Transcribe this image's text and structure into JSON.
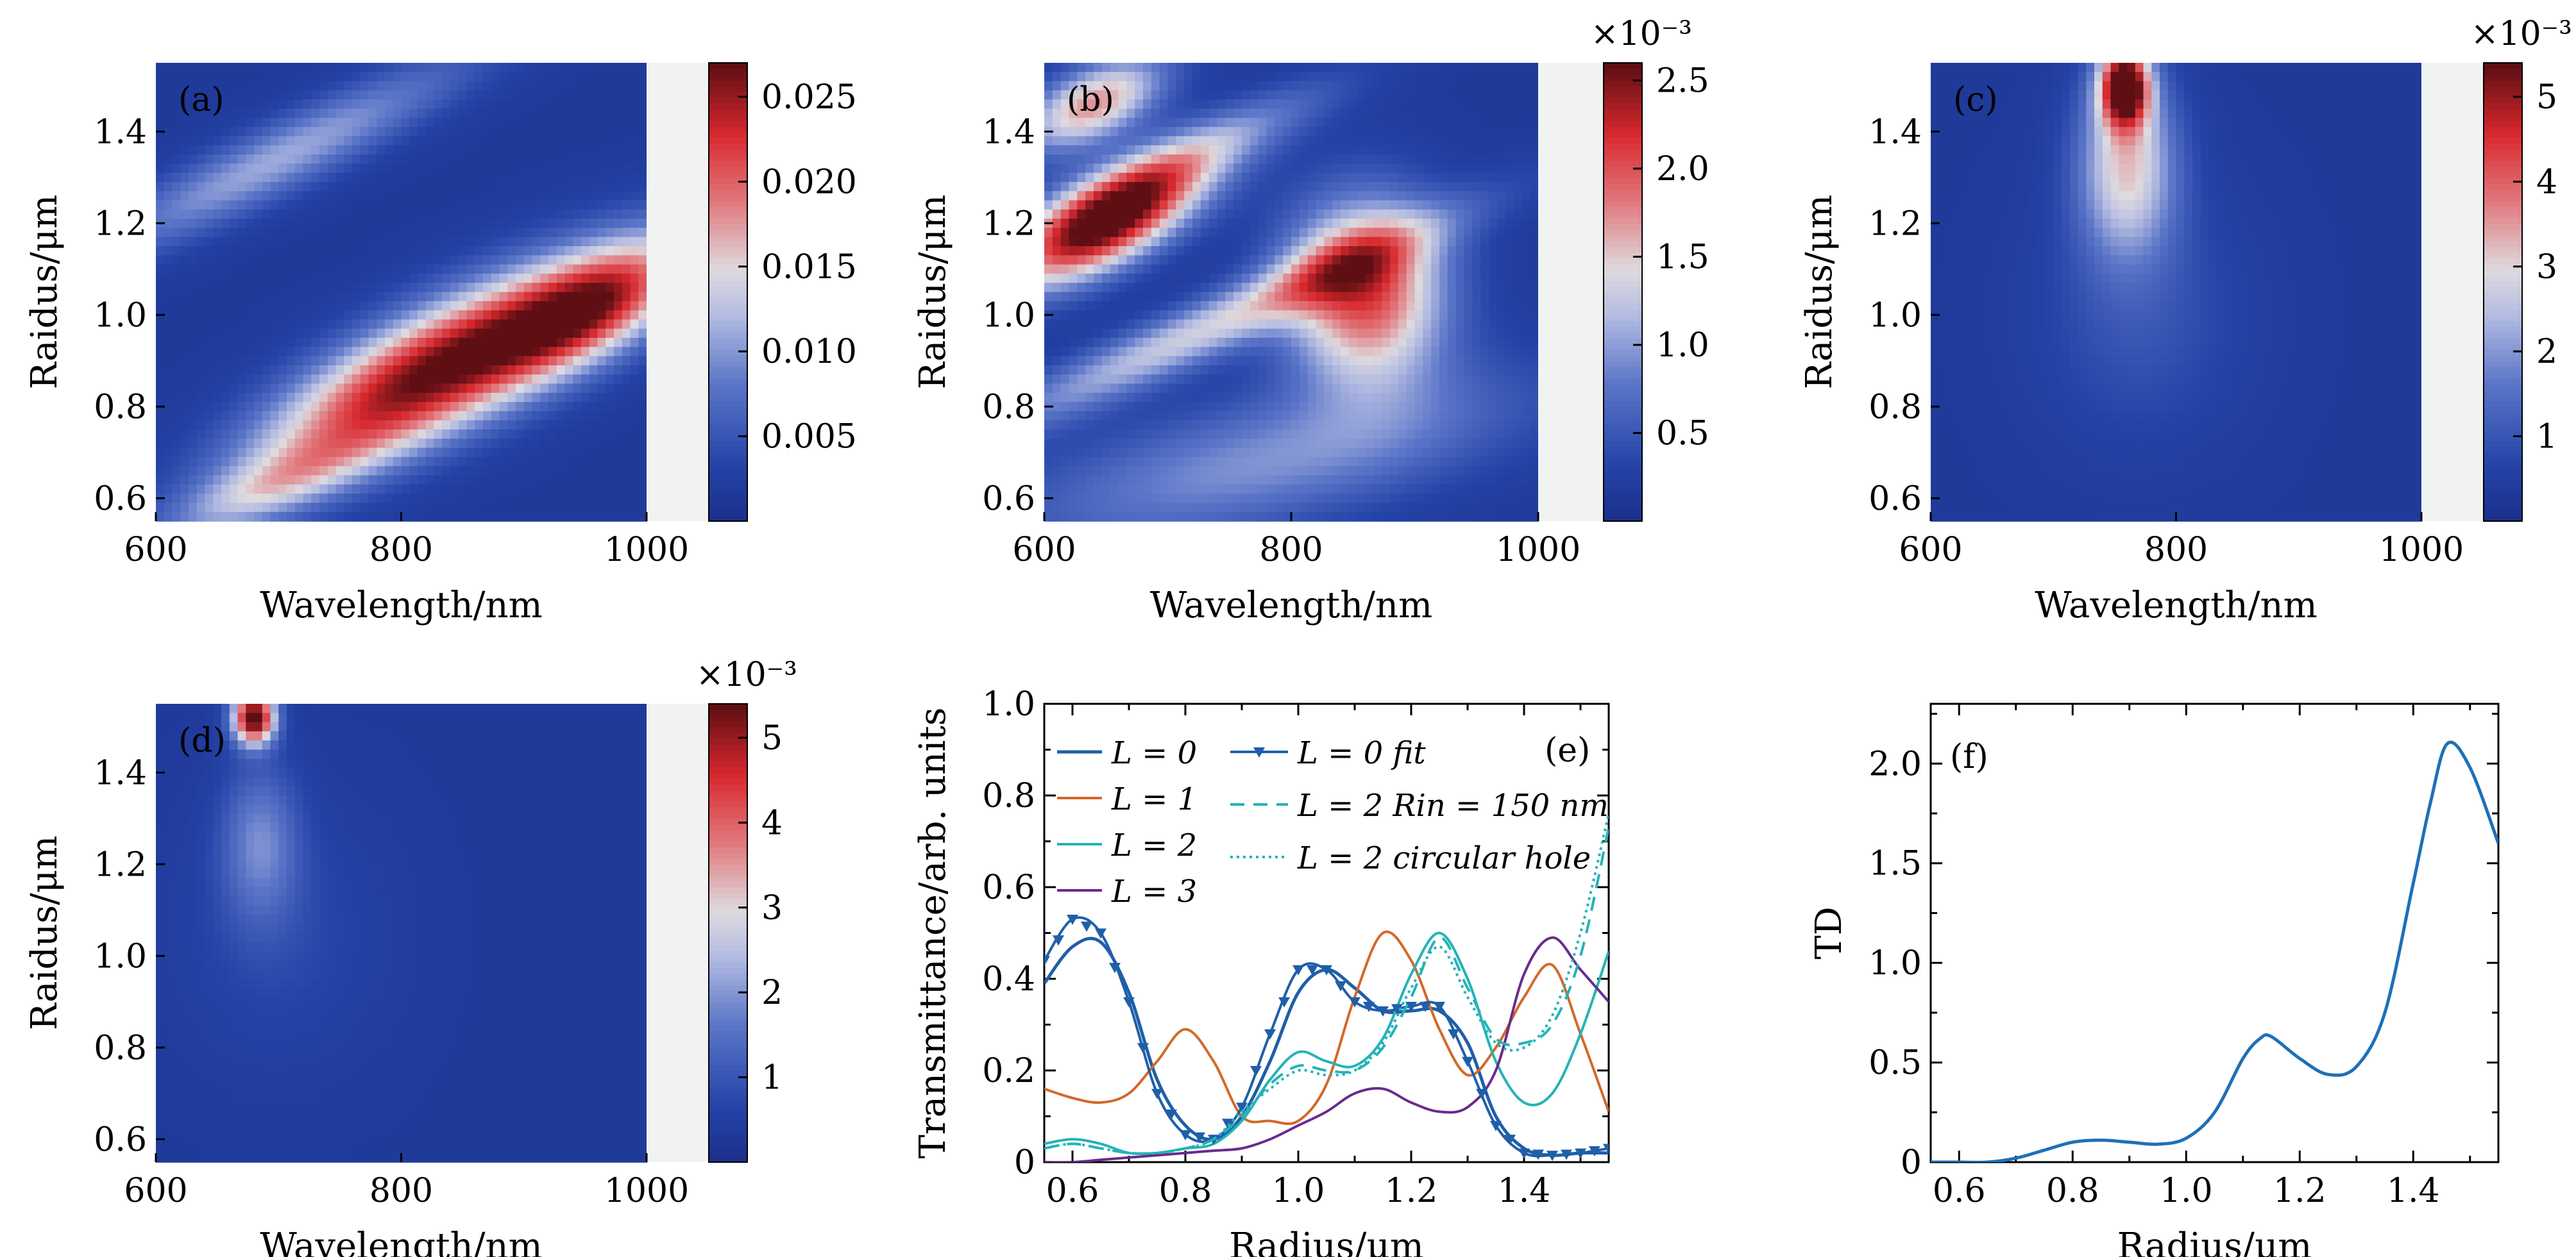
{
  "chart_data": [
    {
      "panel": "(a)",
      "type": "heatmap",
      "xlabel": "Wavelength/nm",
      "ylabel": "Raidus/μm",
      "xlim": [
        600,
        1000
      ],
      "ylim": [
        0.55,
        1.55
      ],
      "xticks": [
        "600",
        "800",
        "1000"
      ],
      "yticks": [
        "0.6",
        "0.8",
        "1.0",
        "1.2",
        "1.4"
      ],
      "colorbar": {
        "min": 0,
        "max": 0.027,
        "ticks": [
          "0.005",
          "0.010",
          "0.015",
          "0.020",
          "0.025"
        ],
        "exponent": ""
      },
      "features": [
        {
          "x": 830,
          "y": 0.88,
          "sx": 100,
          "sy": 0.1,
          "slope": 0.00125,
          "v": 0.95
        },
        {
          "x": 960,
          "y": 1.02,
          "sx": 55,
          "sy": 0.08,
          "slope": 0.0012,
          "v": 0.6
        },
        {
          "x": 700,
          "y": 1.34,
          "sx": 110,
          "sy": 0.06,
          "slope": 0.0013,
          "v": 0.35
        },
        {
          "x": 690,
          "y": 0.62,
          "sx": 60,
          "sy": 0.05,
          "slope": 0.001,
          "v": 0.3
        }
      ]
    },
    {
      "panel": "(b)",
      "type": "heatmap",
      "xlabel": "Wavelength/nm",
      "ylabel": "Raidus/μm",
      "xlim": [
        600,
        1000
      ],
      "ylim": [
        0.55,
        1.55
      ],
      "xticks": [
        "600",
        "800",
        "1000"
      ],
      "yticks": [
        "0.6",
        "0.8",
        "1.0",
        "1.2",
        "1.4"
      ],
      "colorbar": {
        "min": 0,
        "max": 2.6,
        "ticks": [
          "0.5",
          "1.0",
          "1.5",
          "2.0",
          "2.5"
        ],
        "exponent": "×10⁻³"
      },
      "features": [
        {
          "x": 650,
          "y": 1.2,
          "sx": 55,
          "sy": 0.07,
          "slope": 0.0012,
          "v": 1.0
        },
        {
          "x": 640,
          "y": 1.46,
          "sx": 40,
          "sy": 0.06,
          "slope": 0.001,
          "v": 0.6
        },
        {
          "x": 860,
          "y": 1.05,
          "sx": 45,
          "sy": 0.14,
          "slope": 0.0,
          "v": 0.75
        },
        {
          "x": 740,
          "y": 0.98,
          "sx": 130,
          "sy": 0.05,
          "slope": 0.0012,
          "v": 0.45
        },
        {
          "x": 780,
          "y": 0.68,
          "sx": 150,
          "sy": 0.1,
          "slope": 0.0006,
          "v": 0.3
        },
        {
          "x": 720,
          "y": 1.35,
          "sx": 80,
          "sy": 0.05,
          "slope": 0.0012,
          "v": 0.3
        }
      ]
    },
    {
      "panel": "(c)",
      "type": "heatmap",
      "xlabel": "Wavelength/nm",
      "ylabel": "Raidus/μm",
      "xlim": [
        600,
        1000
      ],
      "ylim": [
        0.55,
        1.55
      ],
      "xticks": [
        "600",
        "800",
        "1000"
      ],
      "yticks": [
        "0.6",
        "0.8",
        "1.0",
        "1.2",
        "1.4"
      ],
      "colorbar": {
        "min": 0,
        "max": 5.4,
        "ticks": [
          "1",
          "2",
          "3",
          "4",
          "5"
        ],
        "exponent": "×10⁻³"
      },
      "features": [
        {
          "x": 758,
          "y": 1.5,
          "sx": 14,
          "sy": 0.06,
          "slope": 0.0,
          "v": 1.0
        },
        {
          "x": 760,
          "y": 1.33,
          "sx": 28,
          "sy": 0.14,
          "slope": 0.0,
          "v": 0.5
        },
        {
          "x": 770,
          "y": 1.0,
          "sx": 60,
          "sy": 0.2,
          "slope": 0.0,
          "v": 0.12
        }
      ]
    },
    {
      "panel": "(d)",
      "type": "heatmap",
      "xlabel": "Wavelength/nm",
      "ylabel": "Raidus/μm",
      "xlim": [
        600,
        1000
      ],
      "ylim": [
        0.55,
        1.55
      ],
      "xticks": [
        "600",
        "800",
        "1000"
      ],
      "yticks": [
        "0.6",
        "0.8",
        "1.0",
        "1.2",
        "1.4"
      ],
      "colorbar": {
        "min": 0,
        "max": 5.4,
        "ticks": [
          "1",
          "2",
          "3",
          "4",
          "5"
        ],
        "exponent": "×10⁻³"
      },
      "features": [
        {
          "x": 680,
          "y": 1.52,
          "sx": 12,
          "sy": 0.04,
          "slope": 0.0,
          "v": 1.0
        },
        {
          "x": 685,
          "y": 1.25,
          "sx": 22,
          "sy": 0.12,
          "slope": 0.0,
          "v": 0.25
        },
        {
          "x": 700,
          "y": 1.05,
          "sx": 60,
          "sy": 0.2,
          "slope": 0.0,
          "v": 0.08
        }
      ]
    },
    {
      "panel": "(e)",
      "type": "line",
      "xlabel": "Radius/μm",
      "ylabel": "Transmittance/arb. units",
      "xlim": [
        0.55,
        1.55
      ],
      "ylim": [
        0,
        1.0
      ],
      "xticks": [
        "0.6",
        "0.8",
        "1.0",
        "1.2",
        "1.4"
      ],
      "yticks": [
        "0",
        "0.2",
        "0.4",
        "0.6",
        "0.8",
        "1.0"
      ],
      "series": [
        {
          "name": "L = 0",
          "color": "#1f5fa8",
          "dash": "",
          "width": 5,
          "x": [
            0.55,
            0.6,
            0.65,
            0.7,
            0.75,
            0.8,
            0.85,
            0.9,
            0.95,
            1.0,
            1.05,
            1.1,
            1.15,
            1.2,
            1.25,
            1.3,
            1.35,
            1.4,
            1.45,
            1.5,
            1.55
          ],
          "y": [
            0.39,
            0.47,
            0.48,
            0.37,
            0.18,
            0.08,
            0.05,
            0.1,
            0.22,
            0.37,
            0.42,
            0.38,
            0.33,
            0.33,
            0.33,
            0.26,
            0.1,
            0.03,
            0.015,
            0.02,
            0.02
          ]
        },
        {
          "name": "L = 1",
          "color": "#d2692a",
          "dash": "",
          "width": 4,
          "x": [
            0.55,
            0.6,
            0.65,
            0.7,
            0.75,
            0.8,
            0.85,
            0.9,
            0.95,
            1.0,
            1.05,
            1.1,
            1.15,
            1.2,
            1.25,
            1.3,
            1.35,
            1.4,
            1.45,
            1.5,
            1.55
          ],
          "y": [
            0.16,
            0.14,
            0.13,
            0.15,
            0.22,
            0.29,
            0.22,
            0.1,
            0.09,
            0.09,
            0.17,
            0.36,
            0.5,
            0.44,
            0.29,
            0.19,
            0.25,
            0.36,
            0.43,
            0.28,
            0.11
          ]
        },
        {
          "name": "L = 2",
          "color": "#24b3b7",
          "dash": "",
          "width": 4,
          "x": [
            0.55,
            0.6,
            0.65,
            0.7,
            0.75,
            0.8,
            0.85,
            0.9,
            0.95,
            1.0,
            1.05,
            1.1,
            1.15,
            1.2,
            1.25,
            1.3,
            1.35,
            1.4,
            1.45,
            1.5,
            1.55
          ],
          "y": [
            0.04,
            0.05,
            0.04,
            0.02,
            0.02,
            0.03,
            0.04,
            0.09,
            0.18,
            0.24,
            0.22,
            0.21,
            0.27,
            0.41,
            0.5,
            0.4,
            0.22,
            0.13,
            0.15,
            0.28,
            0.46
          ]
        },
        {
          "name": "L = 3",
          "color": "#6a2a8f",
          "dash": "",
          "width": 4,
          "x": [
            0.55,
            0.6,
            0.65,
            0.7,
            0.75,
            0.8,
            0.85,
            0.9,
            0.95,
            1.0,
            1.05,
            1.1,
            1.15,
            1.2,
            1.25,
            1.3,
            1.35,
            1.4,
            1.45,
            1.5,
            1.55
          ],
          "y": [
            0.0,
            0.0,
            0.005,
            0.01,
            0.015,
            0.02,
            0.025,
            0.03,
            0.05,
            0.08,
            0.11,
            0.15,
            0.16,
            0.13,
            0.11,
            0.12,
            0.2,
            0.41,
            0.49,
            0.42,
            0.35
          ]
        },
        {
          "name": "L = 0 fit",
          "color": "#1f5fa8",
          "dash": "",
          "width": 4,
          "marker": "triangle",
          "x": [
            0.55,
            0.6,
            0.65,
            0.7,
            0.75,
            0.8,
            0.85,
            0.9,
            0.95,
            1.0,
            1.05,
            1.1,
            1.15,
            1.2,
            1.25,
            1.3,
            1.35,
            1.4,
            1.45,
            1.5,
            1.55
          ],
          "y": [
            0.44,
            0.53,
            0.5,
            0.35,
            0.15,
            0.06,
            0.05,
            0.12,
            0.28,
            0.42,
            0.42,
            0.35,
            0.33,
            0.34,
            0.34,
            0.22,
            0.08,
            0.02,
            0.015,
            0.02,
            0.03
          ]
        },
        {
          "name": "L = 2 Rin = 150 nm",
          "color": "#24b3b7",
          "dash": "22,14",
          "width": 4,
          "x": [
            0.55,
            0.6,
            0.65,
            0.7,
            0.75,
            0.8,
            0.85,
            0.9,
            0.95,
            1.0,
            1.05,
            1.1,
            1.15,
            1.2,
            1.25,
            1.3,
            1.35,
            1.4,
            1.45,
            1.5,
            1.55
          ],
          "y": [
            0.03,
            0.04,
            0.03,
            0.02,
            0.02,
            0.03,
            0.05,
            0.1,
            0.17,
            0.21,
            0.2,
            0.2,
            0.25,
            0.36,
            0.49,
            0.38,
            0.27,
            0.26,
            0.3,
            0.45,
            0.73
          ]
        },
        {
          "name": "L = 2 circular hole",
          "color": "#24b3b7",
          "dash": "4,6",
          "width": 4,
          "x": [
            0.55,
            0.6,
            0.65,
            0.7,
            0.75,
            0.8,
            0.85,
            0.9,
            0.95,
            1.0,
            1.05,
            1.1,
            1.15,
            1.2,
            1.25,
            1.3,
            1.35,
            1.4,
            1.45,
            1.5,
            1.55
          ],
          "y": [
            0.03,
            0.04,
            0.03,
            0.02,
            0.02,
            0.03,
            0.05,
            0.11,
            0.16,
            0.2,
            0.19,
            0.2,
            0.26,
            0.38,
            0.47,
            0.36,
            0.26,
            0.25,
            0.32,
            0.5,
            0.76
          ]
        }
      ],
      "legend_col1": [
        "L = 0",
        "L = 1",
        "L = 2",
        "L = 3"
      ],
      "legend_col2": [
        "L = 0 fit",
        "L = 2 Rin = 150 nm",
        "L = 2 circular hole"
      ]
    },
    {
      "panel": "(f)",
      "type": "line",
      "xlabel": "Radius/μm",
      "ylabel": "TD",
      "xlim": [
        0.55,
        1.55
      ],
      "ylim": [
        0,
        2.3
      ],
      "xticks": [
        "0.6",
        "0.8",
        "1.0",
        "1.2",
        "1.4"
      ],
      "yticks": [
        "0",
        "0.5",
        "1.0",
        "1.5",
        "2.0"
      ],
      "series": [
        {
          "color": "#1f6fb8",
          "dash": "",
          "width": 5,
          "x": [
            0.55,
            0.6,
            0.65,
            0.7,
            0.75,
            0.8,
            0.85,
            0.9,
            0.95,
            1.0,
            1.05,
            1.1,
            1.13,
            1.15,
            1.2,
            1.25,
            1.3,
            1.35,
            1.4,
            1.43,
            1.46,
            1.5,
            1.55
          ],
          "y": [
            0,
            0,
            0,
            0.02,
            0.06,
            0.1,
            0.11,
            0.1,
            0.09,
            0.12,
            0.25,
            0.52,
            0.62,
            0.63,
            0.52,
            0.44,
            0.48,
            0.75,
            1.4,
            1.8,
            2.1,
            1.98,
            1.6
          ]
        }
      ]
    }
  ]
}
